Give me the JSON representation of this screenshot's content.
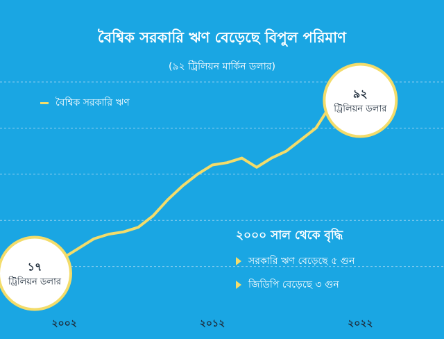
{
  "header": {
    "title": "বৈশ্বিক সরকারি ঋণ বেড়েছে বিপুল পরিমাণ",
    "subtitle": "(৯২ ট্রিলিয়ন মার্কিন ডলার)"
  },
  "legend": {
    "label": "বৈশ্বিক সরকারি ঋণ"
  },
  "colors": {
    "background": "#1aa6e3",
    "line": "#f3dc6a",
    "grid": "#8fcff0",
    "text_dark": "#1d2b3a"
  },
  "chart_data": {
    "type": "line",
    "title": "বৈশ্বিক সরকারি ঋণ বেড়েছে বিপুল পরিমাণ",
    "subtitle": "(৯২ ট্রিলিয়ন মার্কিন ডলার)",
    "xlabel": "",
    "ylabel": "",
    "x_tick_labels": [
      {
        "x": 2002,
        "label": "২০০২"
      },
      {
        "x": 2012,
        "label": "২০১২"
      },
      {
        "x": 2022,
        "label": "২০২২"
      }
    ],
    "xlim": [
      2000,
      2022.5
    ],
    "ylim": [
      0,
      100
    ],
    "grid": true,
    "legend_position": "top-left",
    "series": [
      {
        "name": "বৈশ্বিক সরকারি ঋণ",
        "x": [
          2000,
          2001,
          2002,
          2003,
          2004,
          2005,
          2006,
          2007,
          2008,
          2009,
          2010,
          2011,
          2012,
          2013,
          2014,
          2015,
          2016,
          2017,
          2018,
          2019,
          2020,
          2021,
          2022
        ],
        "values": [
          17,
          22,
          24,
          28,
          32,
          34,
          35,
          37,
          42,
          49,
          55,
          60,
          64,
          65,
          67,
          63,
          67,
          70,
          75,
          80,
          90,
          92,
          92
        ]
      }
    ],
    "callouts": [
      {
        "x": 2000,
        "value_label": "১৭",
        "unit_label": "ট্রিলিয়ন ডলার"
      },
      {
        "x": 2022,
        "value_label": "৯২",
        "unit_label": "ট্রিলিয়ন ডলার"
      }
    ]
  },
  "info_box": {
    "heading": "২০০০ সাল থেকে বৃদ্ধি",
    "items": [
      "সরকারি ঋণ বেড়েছে ৫ গুন",
      "জিডিপি বেড়েছে ৩ গুন"
    ]
  }
}
